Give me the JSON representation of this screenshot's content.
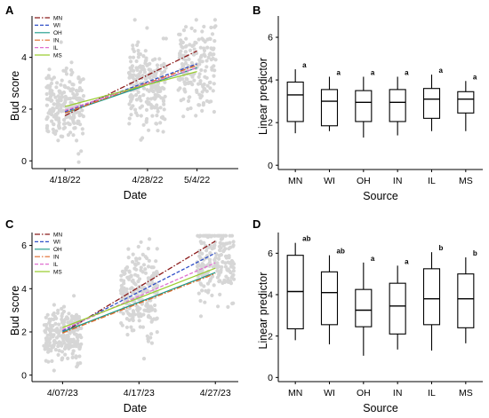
{
  "colors": {
    "MN": "#8b1a1a",
    "WI": "#3050c8",
    "OH": "#1a9a8a",
    "IN": "#e06a2a",
    "IL": "#e070d0",
    "MS": "#9acd32",
    "points": "#d6d6d6"
  },
  "chart_data": [
    {
      "panel": "A",
      "type": "scatter",
      "xlabel": "Date",
      "ylabel": "Bud score",
      "x_ticks": [
        "4/18/22",
        "4/28/22",
        "5/4/22"
      ],
      "x_range": [
        "4/14/22",
        "5/9/22"
      ],
      "ylim": [
        -0.3,
        5.6
      ],
      "y_ticks": [
        "0",
        "2",
        "4"
      ],
      "y_tick_values": [
        0,
        2,
        4
      ],
      "legend": [
        "MN",
        "WI",
        "OH",
        "IN",
        "IL",
        "MS"
      ],
      "legend_placement": "top-left",
      "point_groups": [
        {
          "date": "4/18/22",
          "mean": 2.1,
          "sd": 0.7,
          "n": 220
        },
        {
          "date": "4/28/22",
          "mean": 2.9,
          "sd": 0.8,
          "n": 220
        },
        {
          "date": "5/4/22",
          "mean": 3.7,
          "sd": 0.8,
          "n": 180
        }
      ],
      "series": [
        {
          "name": "MN",
          "style": "dashdot",
          "start": 1.75,
          "end": 4.25
        },
        {
          "name": "WI",
          "style": "dashed",
          "start": 1.9,
          "end": 3.75
        },
        {
          "name": "OH",
          "style": "solid",
          "start": 1.85,
          "end": 3.6
        },
        {
          "name": "IN",
          "style": "dashdot",
          "start": 1.85,
          "end": 3.7
        },
        {
          "name": "IL",
          "style": "dashed",
          "start": 1.95,
          "end": 3.6
        },
        {
          "name": "MS",
          "style": "solid",
          "start": 2.1,
          "end": 3.45
        }
      ]
    },
    {
      "panel": "B",
      "type": "box",
      "xlabel": "Source",
      "ylabel": "Linear predictor",
      "categories": [
        "MN",
        "WI",
        "OH",
        "IN",
        "IL",
        "MS"
      ],
      "ylim": [
        -0.2,
        7.0
      ],
      "y_ticks": [
        "0",
        "2",
        "4",
        "6"
      ],
      "y_tick_values": [
        0,
        2,
        4,
        6
      ],
      "boxes": [
        {
          "min": 1.5,
          "q1": 2.05,
          "median": 3.3,
          "q3": 3.9,
          "max": 4.5
        },
        {
          "min": 1.6,
          "q1": 1.85,
          "median": 3.0,
          "q3": 3.55,
          "max": 4.15
        },
        {
          "min": 1.3,
          "q1": 2.05,
          "median": 2.95,
          "q3": 3.5,
          "max": 4.15
        },
        {
          "min": 1.4,
          "q1": 2.05,
          "median": 2.95,
          "q3": 3.55,
          "max": 4.15
        },
        {
          "min": 1.6,
          "q1": 2.2,
          "median": 3.1,
          "q3": 3.6,
          "max": 4.25
        },
        {
          "min": 1.6,
          "q1": 2.45,
          "median": 3.1,
          "q3": 3.45,
          "max": 3.95
        }
      ],
      "letters": [
        "a",
        "a",
        "a",
        "a",
        "a",
        "a"
      ]
    },
    {
      "panel": "C",
      "type": "scatter",
      "xlabel": "Date",
      "ylabel": "Bud score",
      "x_ticks": [
        "4/07/23",
        "4/17/23",
        "4/27/23"
      ],
      "x_range": [
        "4/03/23",
        "4/30/23"
      ],
      "ylim": [
        -0.3,
        6.6
      ],
      "y_ticks": [
        "0",
        "2",
        "4",
        "6"
      ],
      "y_tick_values": [
        0,
        2,
        4,
        6
      ],
      "legend": [
        "MN",
        "WI",
        "OH",
        "IN",
        "IL",
        "MS"
      ],
      "legend_placement": "top-left",
      "point_groups": [
        {
          "date": "4/07/23",
          "mean": 1.9,
          "sd": 0.6,
          "n": 220
        },
        {
          "date": "4/17/23",
          "mean": 3.8,
          "sd": 1.0,
          "n": 220
        },
        {
          "date": "4/27/23",
          "mean": 5.3,
          "sd": 0.9,
          "n": 200
        }
      ],
      "series": [
        {
          "name": "MN",
          "style": "dashdot",
          "start": 1.95,
          "end": 6.2
        },
        {
          "name": "WI",
          "style": "dashed",
          "start": 2.05,
          "end": 5.65
        },
        {
          "name": "OH",
          "style": "solid",
          "start": 2.0,
          "end": 4.75
        },
        {
          "name": "IN",
          "style": "dashdot",
          "start": 1.95,
          "end": 4.7
        },
        {
          "name": "IL",
          "style": "dashed",
          "start": 2.1,
          "end": 5.2
        },
        {
          "name": "MS",
          "style": "solid",
          "start": 2.2,
          "end": 4.95
        }
      ]
    },
    {
      "panel": "D",
      "type": "box",
      "xlabel": "Source",
      "ylabel": "Linear predictor",
      "categories": [
        "MN",
        "WI",
        "OH",
        "IN",
        "IL",
        "MS"
      ],
      "ylim": [
        -0.2,
        7.0
      ],
      "y_ticks": [
        "0",
        "2",
        "4",
        "6"
      ],
      "y_tick_values": [
        0,
        2,
        4,
        6
      ],
      "boxes": [
        {
          "min": 1.8,
          "q1": 2.35,
          "median": 4.15,
          "q3": 5.9,
          "max": 6.5
        },
        {
          "min": 1.6,
          "q1": 2.55,
          "median": 4.1,
          "q3": 5.1,
          "max": 5.9
        },
        {
          "min": 1.05,
          "q1": 2.45,
          "median": 3.25,
          "q3": 4.25,
          "max": 5.55
        },
        {
          "min": 1.35,
          "q1": 2.1,
          "median": 3.45,
          "q3": 4.55,
          "max": 5.4
        },
        {
          "min": 1.3,
          "q1": 2.55,
          "median": 3.8,
          "q3": 5.25,
          "max": 6.05
        },
        {
          "min": 1.65,
          "q1": 2.4,
          "median": 3.8,
          "q3": 5.0,
          "max": 5.8
        }
      ],
      "letters": [
        "ab",
        "ab",
        "a",
        "a",
        "b",
        "b"
      ]
    }
  ]
}
